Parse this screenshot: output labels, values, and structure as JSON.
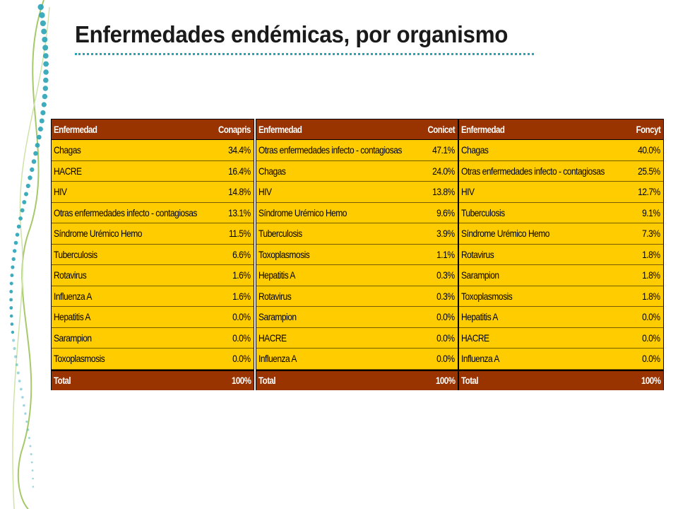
{
  "title": "Enfermedades endémicas, por organismo",
  "colors": {
    "header_bg": "#993300",
    "cell_bg": "#ffcc00",
    "title_rule": "#2aa3b6",
    "decor_dots": "#2aa3b6",
    "decor_curve": "#a6c96a"
  },
  "tables": [
    {
      "col_disease": "Enfermedad",
      "col_org": "Conapris",
      "rows": [
        {
          "disease": "Chagas",
          "value": "34.4%"
        },
        {
          "disease": "HACRE",
          "value": "16.4%"
        },
        {
          "disease": "HIV",
          "value": "14.8%"
        },
        {
          "disease": "Otras enfermedades infecto - contagiosas",
          "value": "13.1%"
        },
        {
          "disease": "Síndrome Urémico Hemo",
          "value": "11.5%"
        },
        {
          "disease": "Tuberculosis",
          "value": "6.6%"
        },
        {
          "disease": "Rotavirus",
          "value": "1.6%"
        },
        {
          "disease": "Influenza A",
          "value": "1.6%"
        },
        {
          "disease": "Hepatitis A",
          "value": "0.0%"
        },
        {
          "disease": "Sarampion",
          "value": "0.0%"
        },
        {
          "disease": "Toxoplasmosis",
          "value": "0.0%"
        }
      ],
      "total_label": "Total",
      "total_value": "100%"
    },
    {
      "col_disease": "Enfermedad",
      "col_org": "Conicet",
      "rows": [
        {
          "disease": "Otras enfermedades infecto - contagiosas",
          "value": "47.1%"
        },
        {
          "disease": "Chagas",
          "value": "24.0%"
        },
        {
          "disease": "HIV",
          "value": "13.8%"
        },
        {
          "disease": "Síndrome Urémico Hemo",
          "value": "9.6%"
        },
        {
          "disease": "Tuberculosis",
          "value": "3.9%"
        },
        {
          "disease": "Toxoplasmosis",
          "value": "1.1%"
        },
        {
          "disease": "Hepatitis A",
          "value": "0.3%"
        },
        {
          "disease": "Rotavirus",
          "value": "0.3%"
        },
        {
          "disease": "Sarampion",
          "value": "0.0%"
        },
        {
          "disease": "HACRE",
          "value": "0.0%"
        },
        {
          "disease": "Influenza A",
          "value": "0.0%"
        }
      ],
      "total_label": "Total",
      "total_value": "100%"
    },
    {
      "col_disease": "Enfermedad",
      "col_org": "Foncyt",
      "rows": [
        {
          "disease": "Chagas",
          "value": "40.0%"
        },
        {
          "disease": "Otras enfermedades infecto - contagiosas",
          "value": "25.5%"
        },
        {
          "disease": "HIV",
          "value": "12.7%"
        },
        {
          "disease": "Tuberculosis",
          "value": "9.1%"
        },
        {
          "disease": "Síndrome Urémico Hemo",
          "value": "7.3%"
        },
        {
          "disease": "Rotavirus",
          "value": "1.8%"
        },
        {
          "disease": "Sarampion",
          "value": "1.8%"
        },
        {
          "disease": "Toxoplasmosis",
          "value": "1.8%"
        },
        {
          "disease": "Hepatitis A",
          "value": "0.0%"
        },
        {
          "disease": "HACRE",
          "value": "0.0%"
        },
        {
          "disease": "Influenza A",
          "value": "0.0%"
        }
      ],
      "total_label": "Total",
      "total_value": "100%"
    }
  ]
}
